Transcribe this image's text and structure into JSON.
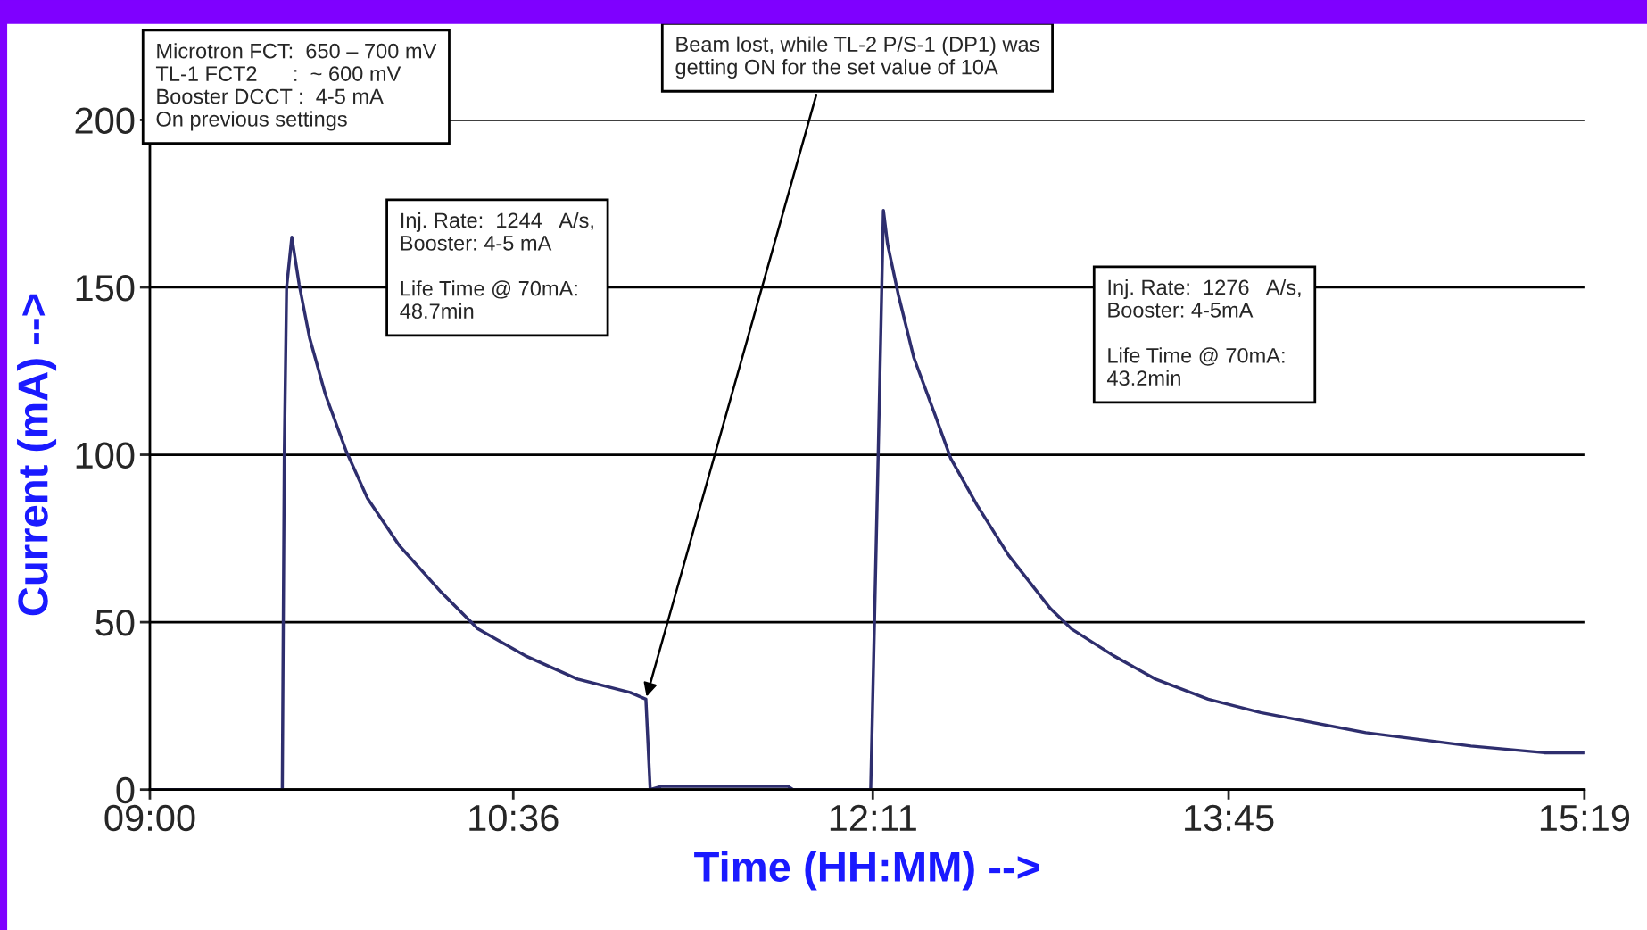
{
  "chart_data": {
    "type": "line",
    "xlabel": "Time (HH:MM) -->",
    "ylabel": "Current (mA) -->",
    "xlim": [
      9.0,
      15.3167
    ],
    "xticks": [
      {
        "value": 9.0,
        "label": "09:00"
      },
      {
        "value": 10.6,
        "label": "10:36"
      },
      {
        "value": 12.1833,
        "label": "12:11"
      },
      {
        "value": 13.75,
        "label": "13:45"
      },
      {
        "value": 15.3167,
        "label": "15:19"
      }
    ],
    "ylim": [
      0,
      200
    ],
    "yticks": [
      0,
      50,
      100,
      150,
      200
    ],
    "grid": "y",
    "marker": "none",
    "line_style": "solid",
    "legend": false,
    "series": [
      {
        "color": "#2e2e6e",
        "x": [
          9.0,
          9.583,
          9.592,
          9.602,
          9.625,
          9.657,
          9.703,
          9.773,
          9.865,
          9.958,
          10.097,
          10.282,
          10.444,
          10.652,
          10.883,
          11.115,
          11.184,
          11.203,
          11.254,
          11.809,
          11.832,
          12.174,
          12.207,
          12.23,
          12.248,
          12.295,
          12.364,
          12.457,
          12.526,
          12.642,
          12.781,
          12.966,
          13.058,
          13.243,
          13.428,
          13.66,
          13.891,
          14.354,
          14.817,
          15.141,
          15.316
        ],
        "values": [
          0,
          0,
          100,
          150,
          165,
          151,
          135,
          118,
          101,
          87,
          73,
          59,
          48,
          40,
          33,
          29,
          27,
          0,
          1,
          1,
          0,
          0,
          100,
          173,
          163,
          148,
          129,
          112,
          99,
          85,
          70,
          54,
          48,
          40,
          33,
          27,
          23,
          17,
          13,
          11,
          11
        ]
      }
    ],
    "annotations": [
      "Microtron FCT:  650 – 700 mV\nTL-1 FCT2      :  ~ 600 mV\nBooster DCCT :  4-5 mA\nOn previous settings",
      "Inj. Rate:  1244   A/s,\nBooster: 4-5 mA\n\nLife Time @ 70mA:\n48.7min",
      {
        "text": "Beam lost, while TL-2 P/S-1 (DP1) was\ngetting ON for the set value of 10A",
        "x": 11.184,
        "y": 27
      },
      "Inj. Rate:  1276   A/s,\nBooster: 4-5mA\n\nLife Time @ 70mA:\n43.2min"
    ]
  }
}
